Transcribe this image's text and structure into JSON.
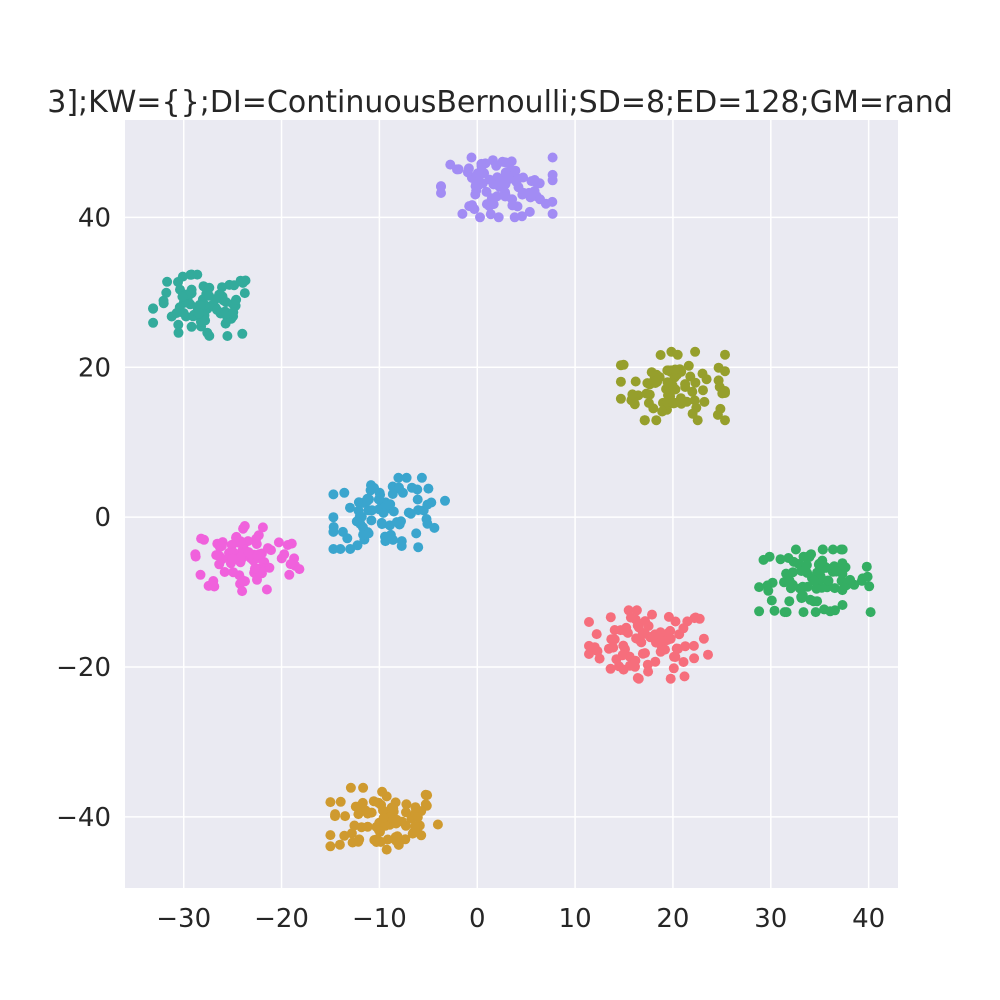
{
  "chart_data": {
    "type": "scatter",
    "title": "3];KW={};DI=ContinuousBernoulli;SD=8;ED=128;GM=rand",
    "xlabel": "",
    "ylabel": "",
    "xlim": [
      -36,
      43
    ],
    "ylim": [
      -49.5,
      53
    ],
    "xticks": [
      -30,
      -20,
      -10,
      0,
      10,
      20,
      30,
      40
    ],
    "xtick_labels": [
      "−30",
      "−20",
      "−10",
      "0",
      "10",
      "20",
      "30",
      "40"
    ],
    "yticks": [
      -40,
      -20,
      0,
      20,
      40
    ],
    "ytick_labels": [
      "−40",
      "−20",
      "0",
      "20",
      "40"
    ],
    "grid": true,
    "legend": "none",
    "background": "#eaeaf2",
    "series": [
      {
        "color": "#f66e7c",
        "center": [
          17.5,
          -17.0
        ],
        "spread": [
          3.2,
          2.4
        ],
        "count": 85
      },
      {
        "color": "#cf9a2f",
        "center": [
          -9.5,
          -40.5
        ],
        "spread": [
          2.9,
          2.3
        ],
        "count": 85
      },
      {
        "color": "#969f2c",
        "center": [
          20.0,
          17.5
        ],
        "spread": [
          2.8,
          2.4
        ],
        "count": 85
      },
      {
        "color": "#34ae63",
        "center": [
          34.5,
          -8.5
        ],
        "spread": [
          3.0,
          2.2
        ],
        "count": 90
      },
      {
        "color": "#33ab9c",
        "center": [
          -28.0,
          28.0
        ],
        "spread": [
          2.7,
          2.3
        ],
        "count": 85
      },
      {
        "color": "#3aa5ce",
        "center": [
          -9.0,
          0.5
        ],
        "spread": [
          3.0,
          2.5
        ],
        "count": 85
      },
      {
        "color": "#a28cf4",
        "center": [
          2.0,
          44.0
        ],
        "spread": [
          3.0,
          2.1
        ],
        "count": 85
      },
      {
        "color": "#f061dc",
        "center": [
          -23.5,
          -5.5
        ],
        "spread": [
          2.8,
          2.3
        ],
        "count": 90
      }
    ]
  }
}
